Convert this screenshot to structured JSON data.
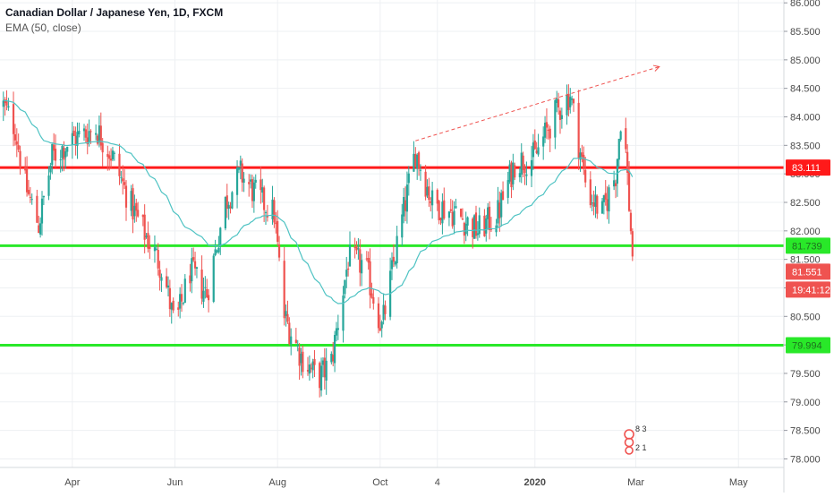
{
  "header": {
    "symbol_title": "Canadian Dollar / Japanese Yen, 1D, FXCM",
    "indicator_label": "EMA (50, close)"
  },
  "colors": {
    "up": "#26a69a",
    "down": "#ef5350",
    "ema": "#4fc3c3",
    "resistance": "#ff1a1a",
    "support": "#29e829",
    "trendline": "#ef5350",
    "grid": "#eef0f3"
  },
  "price_badges": {
    "resistance_value": "83.111",
    "support_value": "81.739",
    "lower_support_value": "79.994",
    "last_price": "81.551",
    "countdown": "19:41:12"
  },
  "icons": [
    "tradingview-logo-icon"
  ],
  "logo_text": {
    "top": "8 3",
    "bottom": "2 1"
  },
  "chart_data": {
    "type": "candlestick",
    "title": "Canadian Dollar / Japanese Yen, 1D, FXCM",
    "indicator": "EMA (50, close)",
    "y_tick_labels": [
      "78.000",
      "78.500",
      "79.000",
      "79.500",
      "80.000",
      "80.500",
      "81.000",
      "81.500",
      "82.000",
      "82.500",
      "83.000",
      "83.500",
      "84.000",
      "84.500",
      "85.000",
      "85.500",
      "86.000"
    ],
    "x_tick_labels": [
      "Apr",
      "Jun",
      "Aug",
      "Oct",
      "4",
      "2020",
      "Mar",
      "May"
    ],
    "x_tick_dates": [
      "2019-04-01",
      "2019-06-01",
      "2019-08-01",
      "2019-10-01",
      "2019-11-04",
      "2020-01-01",
      "2020-03-01",
      "2020-05-01"
    ],
    "x_range": [
      "2019-02-17",
      "2020-05-28"
    ],
    "ylim": [
      77.85,
      86.05
    ],
    "grid": true,
    "horizontal_levels": [
      {
        "name": "resistance",
        "value": 83.111
      },
      {
        "name": "support",
        "value": 81.739
      },
      {
        "name": "lower-support",
        "value": 79.994
      }
    ],
    "trendline": {
      "from": {
        "date": "2019-10-22",
        "value": 83.58
      },
      "to": {
        "date": "2020-02-28",
        "value": 84.88
      },
      "extended": true
    },
    "ohlc_anchors": [
      {
        "date": "2019-02-19",
        "close": 84.2
      },
      {
        "date": "2019-02-26",
        "close": 83.8
      },
      {
        "date": "2019-03-04",
        "close": 82.8
      },
      {
        "date": "2019-03-12",
        "close": 82.1
      },
      {
        "date": "2019-03-20",
        "close": 83.3
      },
      {
        "date": "2019-04-01",
        "close": 83.6
      },
      {
        "date": "2019-04-15",
        "close": 83.8
      },
      {
        "date": "2019-04-25",
        "close": 83.3
      },
      {
        "date": "2019-05-05",
        "close": 82.5
      },
      {
        "date": "2019-05-15",
        "close": 81.9
      },
      {
        "date": "2019-05-25",
        "close": 81.3
      },
      {
        "date": "2019-06-01",
        "close": 80.3
      },
      {
        "date": "2019-06-10",
        "close": 81.3
      },
      {
        "date": "2019-06-20",
        "close": 80.9
      },
      {
        "date": "2019-07-01",
        "close": 82.5
      },
      {
        "date": "2019-07-10",
        "close": 83.0
      },
      {
        "date": "2019-07-20",
        "close": 82.6
      },
      {
        "date": "2019-07-30",
        "close": 82.3
      },
      {
        "date": "2019-08-05",
        "close": 80.5
      },
      {
        "date": "2019-08-15",
        "close": 79.8
      },
      {
        "date": "2019-08-25",
        "close": 79.4
      },
      {
        "date": "2019-09-02",
        "close": 79.7
      },
      {
        "date": "2019-09-12",
        "close": 81.5
      },
      {
        "date": "2019-09-22",
        "close": 81.4
      },
      {
        "date": "2019-10-02",
        "close": 80.3
      },
      {
        "date": "2019-10-10",
        "close": 81.6
      },
      {
        "date": "2019-10-22",
        "close": 83.4
      },
      {
        "date": "2019-11-01",
        "close": 82.5
      },
      {
        "date": "2019-11-15",
        "close": 82.3
      },
      {
        "date": "2019-11-28",
        "close": 82.0
      },
      {
        "date": "2019-12-10",
        "close": 82.3
      },
      {
        "date": "2019-12-20",
        "close": 83.2
      },
      {
        "date": "2020-01-01",
        "close": 83.3
      },
      {
        "date": "2020-01-12",
        "close": 84.0
      },
      {
        "date": "2020-01-22",
        "close": 84.4
      },
      {
        "date": "2020-02-01",
        "close": 82.7
      },
      {
        "date": "2020-02-10",
        "close": 82.3
      },
      {
        "date": "2020-02-18",
        "close": 83.0
      },
      {
        "date": "2020-02-22",
        "close": 84.3
      },
      {
        "date": "2020-02-28",
        "close": 81.55
      }
    ],
    "last_price": 81.551
  }
}
